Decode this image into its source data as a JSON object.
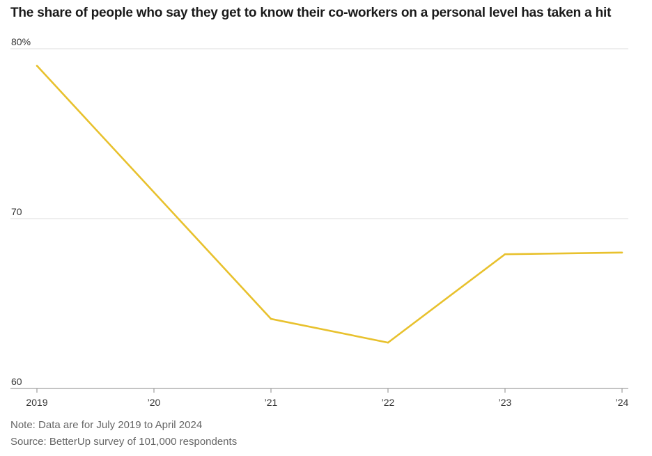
{
  "chart_data": {
    "type": "line",
    "title": "The share of people who say they get to know their co-workers on a personal level has taken a hit",
    "xlabel": "",
    "ylabel": "",
    "x": [
      2019.0,
      2021.0,
      2022.0,
      2023.0,
      2024.0
    ],
    "x_range": [
      2019,
      2024
    ],
    "x_ticks": [
      {
        "value": 2019,
        "label": "2019"
      },
      {
        "value": 2020,
        "label": "’20"
      },
      {
        "value": 2021,
        "label": "’21"
      },
      {
        "value": 2022,
        "label": "’22"
      },
      {
        "value": 2023,
        "label": "’23"
      },
      {
        "value": 2024,
        "label": "’24"
      }
    ],
    "ylim": [
      60,
      80
    ],
    "y_ticks": [
      {
        "value": 80,
        "label": "80%"
      },
      {
        "value": 70,
        "label": "70"
      },
      {
        "value": 60,
        "label": "60"
      }
    ],
    "series": [
      {
        "name": "Share who get to know co-workers on a personal level",
        "color": "#e8c12d",
        "values": [
          79.0,
          64.1,
          62.7,
          67.9,
          68.0
        ]
      }
    ],
    "grid": true,
    "legend": "none"
  },
  "footer": {
    "note": "Note: Data are for July 2019 to April 2024",
    "source": "Source: BetterUp survey of 101,000 respondents"
  },
  "colors": {
    "line": "#e8c12d",
    "grid": "#dddddd",
    "axis": "#888888"
  }
}
